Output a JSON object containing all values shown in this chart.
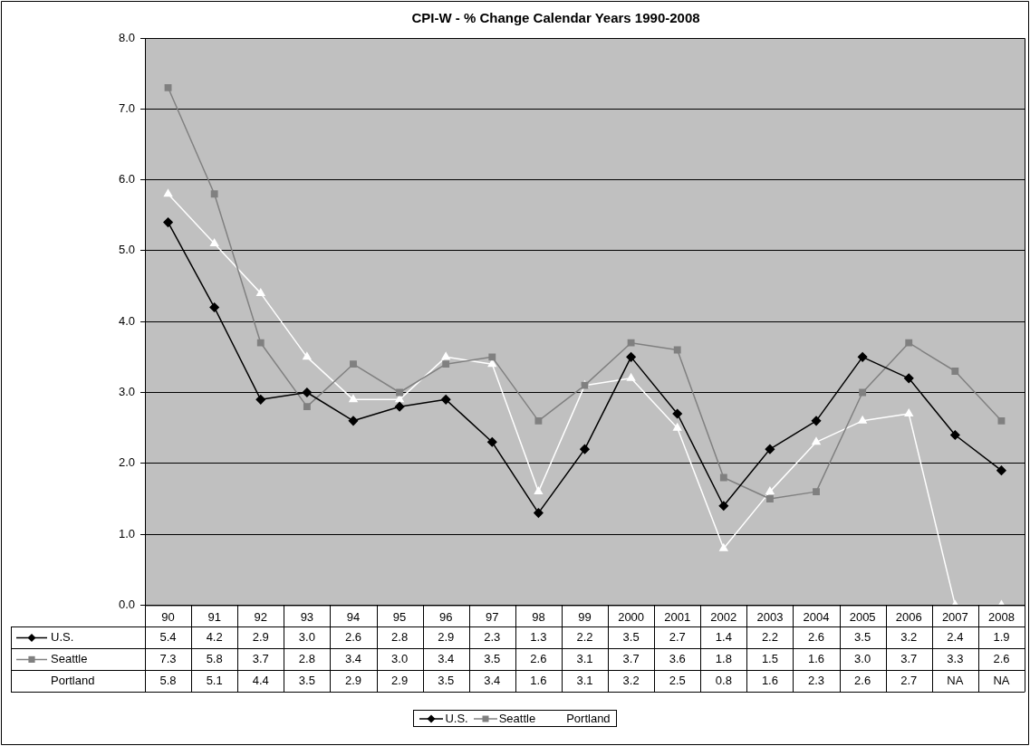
{
  "chart_data": {
    "type": "line",
    "title": "CPI-W - % Change Calendar Years 1990-2008",
    "categories": [
      "90",
      "91",
      "92",
      "93",
      "94",
      "95",
      "96",
      "97",
      "98",
      "99",
      "2000",
      "2001",
      "2002",
      "2003",
      "2004",
      "2005",
      "2006",
      "2007",
      "2008"
    ],
    "series": [
      {
        "name": "U.S.",
        "color": "#000000",
        "marker": "diamond",
        "values": [
          5.4,
          4.2,
          2.9,
          3.0,
          2.6,
          2.8,
          2.9,
          2.3,
          1.3,
          2.2,
          3.5,
          2.7,
          1.4,
          2.2,
          2.6,
          3.5,
          3.2,
          2.4,
          1.9
        ],
        "value_labels": [
          "5.4",
          "4.2",
          "2.9",
          "3.0",
          "2.6",
          "2.8",
          "2.9",
          "2.3",
          "1.3",
          "2.2",
          "3.5",
          "2.7",
          "1.4",
          "2.2",
          "2.6",
          "3.5",
          "3.2",
          "2.4",
          "1.9"
        ]
      },
      {
        "name": "Seattle",
        "color": "#808080",
        "marker": "square",
        "values": [
          7.3,
          5.8,
          3.7,
          2.8,
          3.4,
          3.0,
          3.4,
          3.5,
          2.6,
          3.1,
          3.7,
          3.6,
          1.8,
          1.5,
          1.6,
          3.0,
          3.7,
          3.3,
          2.6
        ],
        "value_labels": [
          "7.3",
          "5.8",
          "3.7",
          "2.8",
          "3.4",
          "3.0",
          "3.4",
          "3.5",
          "2.6",
          "3.1",
          "3.7",
          "3.6",
          "1.8",
          "1.5",
          "1.6",
          "3.0",
          "3.7",
          "3.3",
          "2.6"
        ]
      },
      {
        "name": "Portland",
        "color": "#ffffff",
        "marker": "triangle",
        "values": [
          5.8,
          5.1,
          4.4,
          3.5,
          2.9,
          2.9,
          3.5,
          3.4,
          1.6,
          3.1,
          3.2,
          2.5,
          0.8,
          1.6,
          2.3,
          2.6,
          2.7,
          0,
          0
        ],
        "value_labels": [
          "5.8",
          "5.1",
          "4.4",
          "3.5",
          "2.9",
          "2.9",
          "3.5",
          "3.4",
          "1.6",
          "3.1",
          "3.2",
          "2.5",
          "0.8",
          "1.6",
          "2.3",
          "2.6",
          "2.7",
          "NA",
          "NA"
        ]
      }
    ],
    "ylim": [
      0,
      8
    ],
    "yticks": [
      {
        "value": 0,
        "label": "0.0"
      },
      {
        "value": 1,
        "label": "1.0"
      },
      {
        "value": 2,
        "label": "2.0"
      },
      {
        "value": 3,
        "label": "3.0"
      },
      {
        "value": 4,
        "label": "4.0"
      },
      {
        "value": 5,
        "label": "5.0"
      },
      {
        "value": 6,
        "label": "6.0"
      },
      {
        "value": 7,
        "label": "7.0"
      },
      {
        "value": 8,
        "label": "8.0"
      }
    ],
    "grid": "y",
    "legend": "bottom",
    "line_style": "solid"
  }
}
